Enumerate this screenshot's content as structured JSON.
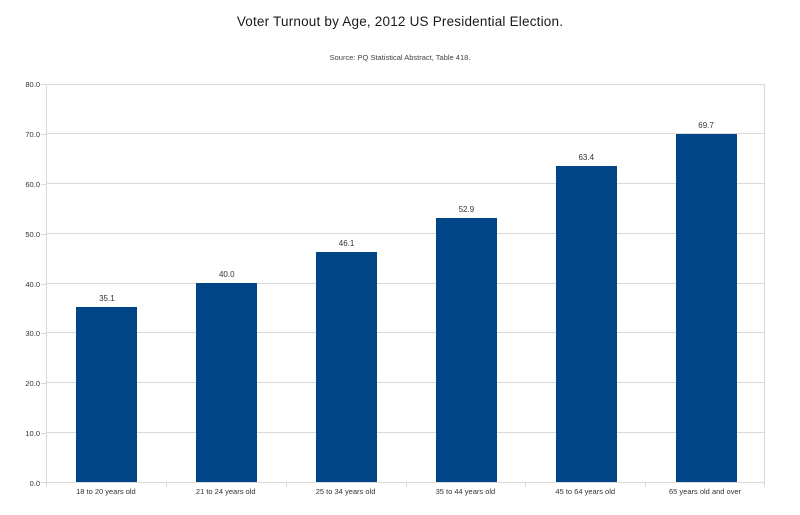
{
  "chart_data": {
    "type": "bar",
    "title": "Voter Turnout by Age, 2012 US Presidential Election.",
    "subtitle": "Source: PQ Statistical Abstract, Table 418.",
    "categories": [
      "18 to 20 years old",
      "21 to 24 years old",
      "25 to 34 years old",
      "35 to 44 years old",
      "45 to 64 years old",
      "65 years old and over"
    ],
    "values": [
      35.1,
      40.0,
      46.1,
      52.9,
      63.4,
      69.7
    ],
    "value_labels": [
      "35.1",
      "40.0",
      "46.1",
      "52.9",
      "63.4",
      "69.7"
    ],
    "xlabel": "",
    "ylabel": "",
    "ylim": [
      0,
      80
    ],
    "ytick_step": 10,
    "ytick_labels": [
      "0.0",
      "10.0",
      "20.0",
      "30.0",
      "40.0",
      "50.0",
      "60.0",
      "70.0",
      "80.0"
    ],
    "grid": true,
    "legend_position": "none",
    "bar_color": "#004586",
    "grid_color": "#d9d9d9",
    "text_color": "#333333",
    "background_color": "#ffffff"
  }
}
